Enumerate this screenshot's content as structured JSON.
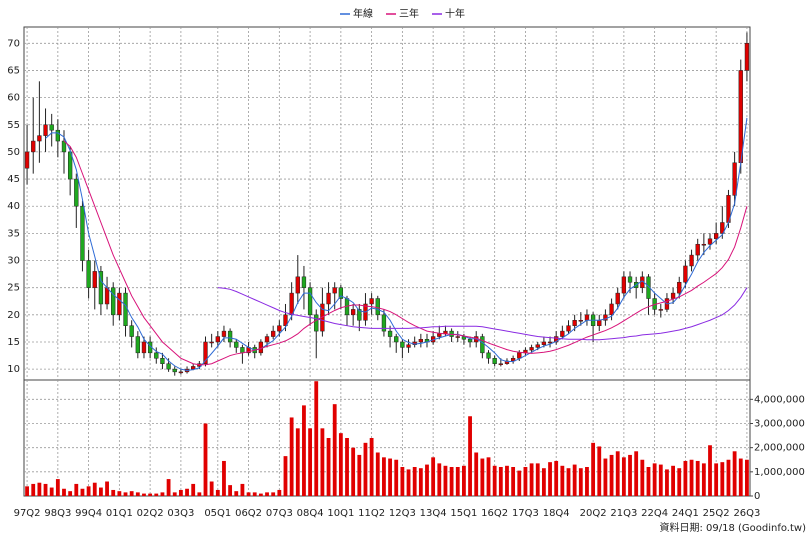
{
  "chart_data": {
    "type": "candlestick",
    "source": "資料日期: 09/18 (Goodinfo.tw)",
    "up_color": "#e00000",
    "down_color": "#1fa81f",
    "volume_color": "#e00000",
    "grid": true,
    "legend": "top",
    "categories": [
      "97Q2",
      null,
      null,
      null,
      null,
      "98Q3",
      null,
      null,
      null,
      null,
      "99Q4",
      null,
      null,
      null,
      null,
      "01Q1",
      null,
      null,
      null,
      null,
      "02Q2",
      null,
      null,
      null,
      null,
      "03Q3",
      null,
      null,
      null,
      null,
      null,
      "05Q1",
      null,
      null,
      null,
      null,
      "06Q2",
      null,
      null,
      null,
      null,
      "07Q3",
      null,
      null,
      null,
      null,
      "08Q4",
      null,
      null,
      null,
      null,
      "10Q1",
      null,
      null,
      null,
      null,
      "11Q2",
      null,
      null,
      null,
      null,
      "12Q3",
      null,
      null,
      null,
      null,
      "13Q4",
      null,
      null,
      null,
      null,
      "15Q1",
      null,
      null,
      null,
      null,
      "16Q2",
      null,
      null,
      null,
      null,
      "17Q3",
      null,
      null,
      null,
      null,
      "18Q4",
      null,
      null,
      null,
      null,
      null,
      "20Q2",
      null,
      null,
      null,
      null,
      "21Q3",
      null,
      null,
      null,
      null,
      "22Q4",
      null,
      null,
      null,
      null,
      "24Q1",
      null,
      null,
      null,
      null,
      "25Q2",
      null,
      null,
      null,
      null,
      "26Q3"
    ],
    "open": [
      47,
      50,
      52,
      53,
      55,
      54,
      52,
      50,
      45,
      40,
      30,
      25,
      28,
      22,
      25,
      20,
      24,
      18,
      16,
      13,
      15,
      13,
      12,
      11,
      10,
      9.5,
      9.5,
      10,
      10.5,
      11,
      15,
      15,
      16,
      17,
      15,
      14,
      13,
      14,
      13,
      15,
      16,
      17,
      18,
      20,
      24,
      27,
      25,
      20,
      17,
      22,
      24,
      25,
      23,
      20,
      21,
      19,
      22,
      23,
      20,
      17,
      16,
      15,
      14,
      14.5,
      15,
      15.5,
      15,
      16,
      16.5,
      17,
      16,
      16,
      15.5,
      15,
      16,
      13,
      12,
      11,
      11,
      11.5,
      12,
      13,
      13.5,
      14,
      14.5,
      15,
      15,
      16,
      17,
      18,
      19,
      19,
      20,
      18,
      19,
      20,
      22,
      24,
      27,
      26,
      25,
      27,
      23,
      21,
      21,
      23,
      24,
      26,
      29,
      31,
      33,
      33,
      34,
      35,
      37,
      42,
      48,
      65
    ],
    "high": [
      55,
      60,
      63,
      58,
      57,
      56,
      54,
      51,
      46,
      41,
      32,
      30,
      29,
      27,
      26,
      25,
      25,
      19,
      17,
      16,
      16,
      14,
      13,
      12,
      10.5,
      10,
      10.5,
      11,
      11.5,
      16,
      16.5,
      17,
      18,
      17.5,
      15.5,
      14.5,
      15,
      14.5,
      15.5,
      16.5,
      18,
      19,
      22,
      26,
      31,
      29,
      26,
      21,
      25,
      26,
      26,
      25.5,
      23.5,
      22,
      22,
      24,
      24,
      23.5,
      21,
      18,
      16.5,
      15.5,
      15.5,
      16,
      16.5,
      16.5,
      17,
      18,
      18,
      17.5,
      17,
      16.5,
      16,
      17,
      16.5,
      13.5,
      12.5,
      12,
      12,
      12.5,
      13.5,
      14,
      14.5,
      15,
      16,
      16,
      17,
      18,
      19,
      20,
      20.5,
      21,
      20.5,
      20,
      21,
      23,
      25,
      28,
      28,
      27,
      28,
      27.5,
      24,
      22,
      24,
      25,
      27,
      30,
      32,
      34,
      35,
      35,
      37,
      40,
      43,
      50,
      67,
      72
    ],
    "low": [
      44,
      46,
      48,
      50,
      51,
      49,
      46,
      42,
      36,
      28,
      23,
      21,
      20,
      21,
      18,
      19,
      16,
      14,
      12,
      12,
      12,
      11,
      10,
      9.5,
      8.8,
      9,
      9.2,
      9.8,
      10,
      10.5,
      14,
      14,
      15,
      14,
      13,
      11,
      12.5,
      12,
      12.5,
      14,
      15.5,
      16,
      17,
      19,
      22,
      21,
      18,
      12,
      16,
      20,
      21,
      21,
      18,
      18,
      17,
      18,
      20,
      19,
      16,
      14,
      13,
      12,
      13,
      14,
      14,
      14,
      14.5,
      15.5,
      16,
      15,
      15,
      14.5,
      14,
      14,
      12,
      11,
      10.5,
      10.5,
      10.8,
      11,
      11.5,
      12.5,
      13,
      13.5,
      14,
      14,
      14.5,
      15.5,
      16.5,
      17,
      18,
      18,
      15,
      17,
      18,
      19,
      21,
      23,
      24,
      23,
      24,
      20,
      20,
      19.5,
      20.5,
      22,
      23,
      25,
      28,
      30,
      31,
      32,
      33,
      34,
      36,
      40,
      46,
      63
    ],
    "close": [
      50,
      52,
      53,
      55,
      54,
      52,
      50,
      45,
      40,
      30,
      25,
      28,
      22,
      25,
      20,
      24,
      18,
      16,
      13,
      15,
      13,
      12,
      11,
      10,
      9.5,
      9.5,
      10,
      10.5,
      11,
      15,
      15,
      16,
      17,
      15,
      14,
      13,
      14,
      13,
      15,
      16,
      17,
      18,
      20,
      24,
      27,
      25,
      20,
      17,
      22,
      24,
      25,
      23,
      20,
      21,
      19,
      22,
      23,
      20,
      17,
      16,
      15,
      14,
      14.5,
      15,
      15.5,
      15,
      16,
      16.5,
      17,
      16,
      16,
      15.5,
      15,
      16,
      13,
      12,
      11,
      11,
      11.5,
      12,
      13,
      13.5,
      14,
      14.5,
      15,
      15,
      16,
      17,
      18,
      19,
      19,
      20,
      18,
      19,
      20,
      22,
      24,
      27,
      26,
      25,
      27,
      23,
      21,
      21,
      23,
      24,
      26,
      29,
      31,
      33,
      33,
      34,
      35,
      37,
      42,
      48,
      65,
      70
    ],
    "ylim": [
      8,
      73
    ],
    "yticks": [
      10,
      15,
      20,
      25,
      30,
      35,
      40,
      45,
      50,
      55,
      60,
      65,
      70
    ],
    "series": [
      {
        "name": "年線",
        "color": "#2f6bd6",
        "values": [
          null,
          null,
          null,
          52.5,
          53.5,
          53.5,
          52.75,
          50.25,
          46.75,
          41.25,
          35,
          30.75,
          26.25,
          25,
          23.75,
          22.75,
          21.75,
          19.5,
          17.75,
          15.5,
          14.25,
          13.25,
          12.75,
          11.5,
          10.6,
          10,
          9.75,
          9.9,
          10.25,
          11.6,
          12.9,
          14.25,
          15.75,
          15.75,
          15.5,
          14.75,
          14,
          13.5,
          13.75,
          14.5,
          15.25,
          16.5,
          17.75,
          19.75,
          22.25,
          24,
          24,
          22.25,
          21,
          20.75,
          22,
          23.5,
          23,
          22.25,
          20.75,
          20.5,
          21.25,
          21,
          20.5,
          19,
          17,
          15.5,
          14.9,
          14.6,
          14.75,
          15,
          15.4,
          15.75,
          16.1,
          16.4,
          16.4,
          16.1,
          15.6,
          15.6,
          14.9,
          14,
          13,
          11.75,
          11.4,
          11.4,
          11.9,
          12.5,
          13.1,
          13.75,
          14.25,
          14.6,
          15.1,
          15.75,
          16.5,
          17.5,
          18.25,
          19,
          19,
          19,
          19.25,
          19.75,
          21.25,
          23.25,
          24.75,
          25.5,
          26.25,
          25.25,
          24,
          23,
          22,
          22.25,
          23.5,
          25.5,
          27.5,
          29.75,
          31.5,
          32.75,
          33.75,
          34.75,
          37,
          40.5,
          48,
          56.25
        ]
      },
      {
        "name": "三年",
        "color": "#d8137a",
        "values": [
          null,
          null,
          null,
          null,
          null,
          null,
          52,
          51,
          49,
          46,
          43,
          40,
          37,
          34,
          31,
          28.5,
          26,
          23.5,
          21.5,
          19.5,
          18,
          16.5,
          15,
          14,
          13,
          12,
          11.5,
          11,
          10.8,
          10.8,
          11,
          11.5,
          12,
          12.5,
          12.8,
          13,
          13.2,
          13.5,
          13.8,
          14.2,
          14.5,
          14.8,
          15.2,
          15.8,
          16.5,
          17.5,
          18.3,
          19,
          19.6,
          20.2,
          20.8,
          21.3,
          21.6,
          21.8,
          21.8,
          21.6,
          21.5,
          21.3,
          21,
          20.6,
          20,
          19.3,
          18.6,
          18,
          17.5,
          17,
          16.8,
          16.6,
          16.5,
          16.4,
          16.3,
          16.1,
          15.9,
          15.7,
          15.3,
          14.8,
          14.4,
          14,
          13.6,
          13.3,
          13.1,
          13,
          12.9,
          13,
          13.1,
          13.3,
          13.6,
          14,
          14.4,
          14.9,
          15.4,
          15.9,
          16.3,
          16.7,
          17.1,
          17.6,
          18.2,
          18.9,
          19.6,
          20.3,
          21,
          21.5,
          21.9,
          22.2,
          22.5,
          22.9,
          23.3,
          23.9,
          24.5,
          25.3,
          26,
          26.8,
          27.6,
          28.7,
          30.2,
          32.5,
          36,
          40
        ]
      },
      {
        "name": "十年",
        "color": "#8a2be2",
        "values": [
          null,
          null,
          null,
          null,
          null,
          null,
          null,
          null,
          null,
          null,
          null,
          null,
          null,
          null,
          null,
          null,
          null,
          null,
          null,
          null,
          null,
          null,
          null,
          null,
          null,
          null,
          null,
          null,
          null,
          null,
          null,
          25,
          24.9,
          24.7,
          24.3,
          23.8,
          23.3,
          22.8,
          22.3,
          21.8,
          21.3,
          20.8,
          20.4,
          20.1,
          19.9,
          19.7,
          19.5,
          19.3,
          19,
          18.7,
          18.4,
          18.2,
          18,
          17.8,
          17.7,
          17.6,
          17.5,
          17.5,
          17.5,
          17.5,
          17.5,
          17.5,
          17.5,
          17.6,
          17.6,
          17.7,
          17.8,
          17.8,
          17.9,
          17.9,
          17.9,
          17.9,
          17.9,
          17.9,
          17.8,
          17.6,
          17.4,
          17.2,
          17,
          16.8,
          16.6,
          16.4,
          16.2,
          16,
          15.9,
          15.8,
          15.7,
          15.6,
          15.5,
          15.5,
          15.5,
          15.4,
          15.4,
          15.4,
          15.5,
          15.6,
          15.7,
          15.8,
          16,
          16.1,
          16.3,
          16.4,
          16.5,
          16.6,
          16.8,
          17,
          17.2,
          17.5,
          17.8,
          18.2,
          18.6,
          19,
          19.5,
          20,
          20.8,
          21.8,
          23.2,
          25
        ]
      }
    ],
    "volume": {
      "values": [
        400000,
        500000,
        550000,
        500000,
        350000,
        700000,
        300000,
        200000,
        500000,
        300000,
        400000,
        550000,
        350000,
        600000,
        250000,
        200000,
        150000,
        200000,
        150000,
        100000,
        100000,
        100000,
        150000,
        700000,
        150000,
        250000,
        300000,
        500000,
        150000,
        3000000,
        600000,
        250000,
        1450000,
        450000,
        200000,
        500000,
        150000,
        150000,
        100000,
        150000,
        150000,
        250000,
        1650000,
        3250000,
        2800000,
        3750000,
        2800000,
        4750000,
        2800000,
        2400000,
        3800000,
        2600000,
        2400000,
        2000000,
        1700000,
        2200000,
        2400000,
        1800000,
        1600000,
        1550000,
        1500000,
        1200000,
        1100000,
        1200000,
        1150000,
        1300000,
        1600000,
        1350000,
        1250000,
        1200000,
        1200000,
        1250000,
        3300000,
        1800000,
        1550000,
        1600000,
        1250000,
        1200000,
        1250000,
        1200000,
        1050000,
        1200000,
        1350000,
        1350000,
        1150000,
        1400000,
        1450000,
        1250000,
        1150000,
        1300000,
        1150000,
        1200000,
        2200000,
        2050000,
        1550000,
        1700000,
        1850000,
        1600000,
        1700000,
        1850000,
        1500000,
        1200000,
        1350000,
        1300000,
        1100000,
        1250000,
        1150000,
        1450000,
        1500000,
        1450000,
        1350000,
        2100000,
        1350000,
        1400000,
        1500000,
        1850000,
        1550000,
        1500000
      ],
      "ylim": [
        0,
        4800000
      ],
      "yticks": [
        0,
        {
          "value": 1000000,
          "label": "1,000,000"
        },
        {
          "value": 2000000,
          "label": "2,000,000"
        },
        {
          "value": 3000000,
          "label": "3,000,000"
        },
        {
          "value": 4000000,
          "label": "4,000,000"
        }
      ]
    }
  }
}
